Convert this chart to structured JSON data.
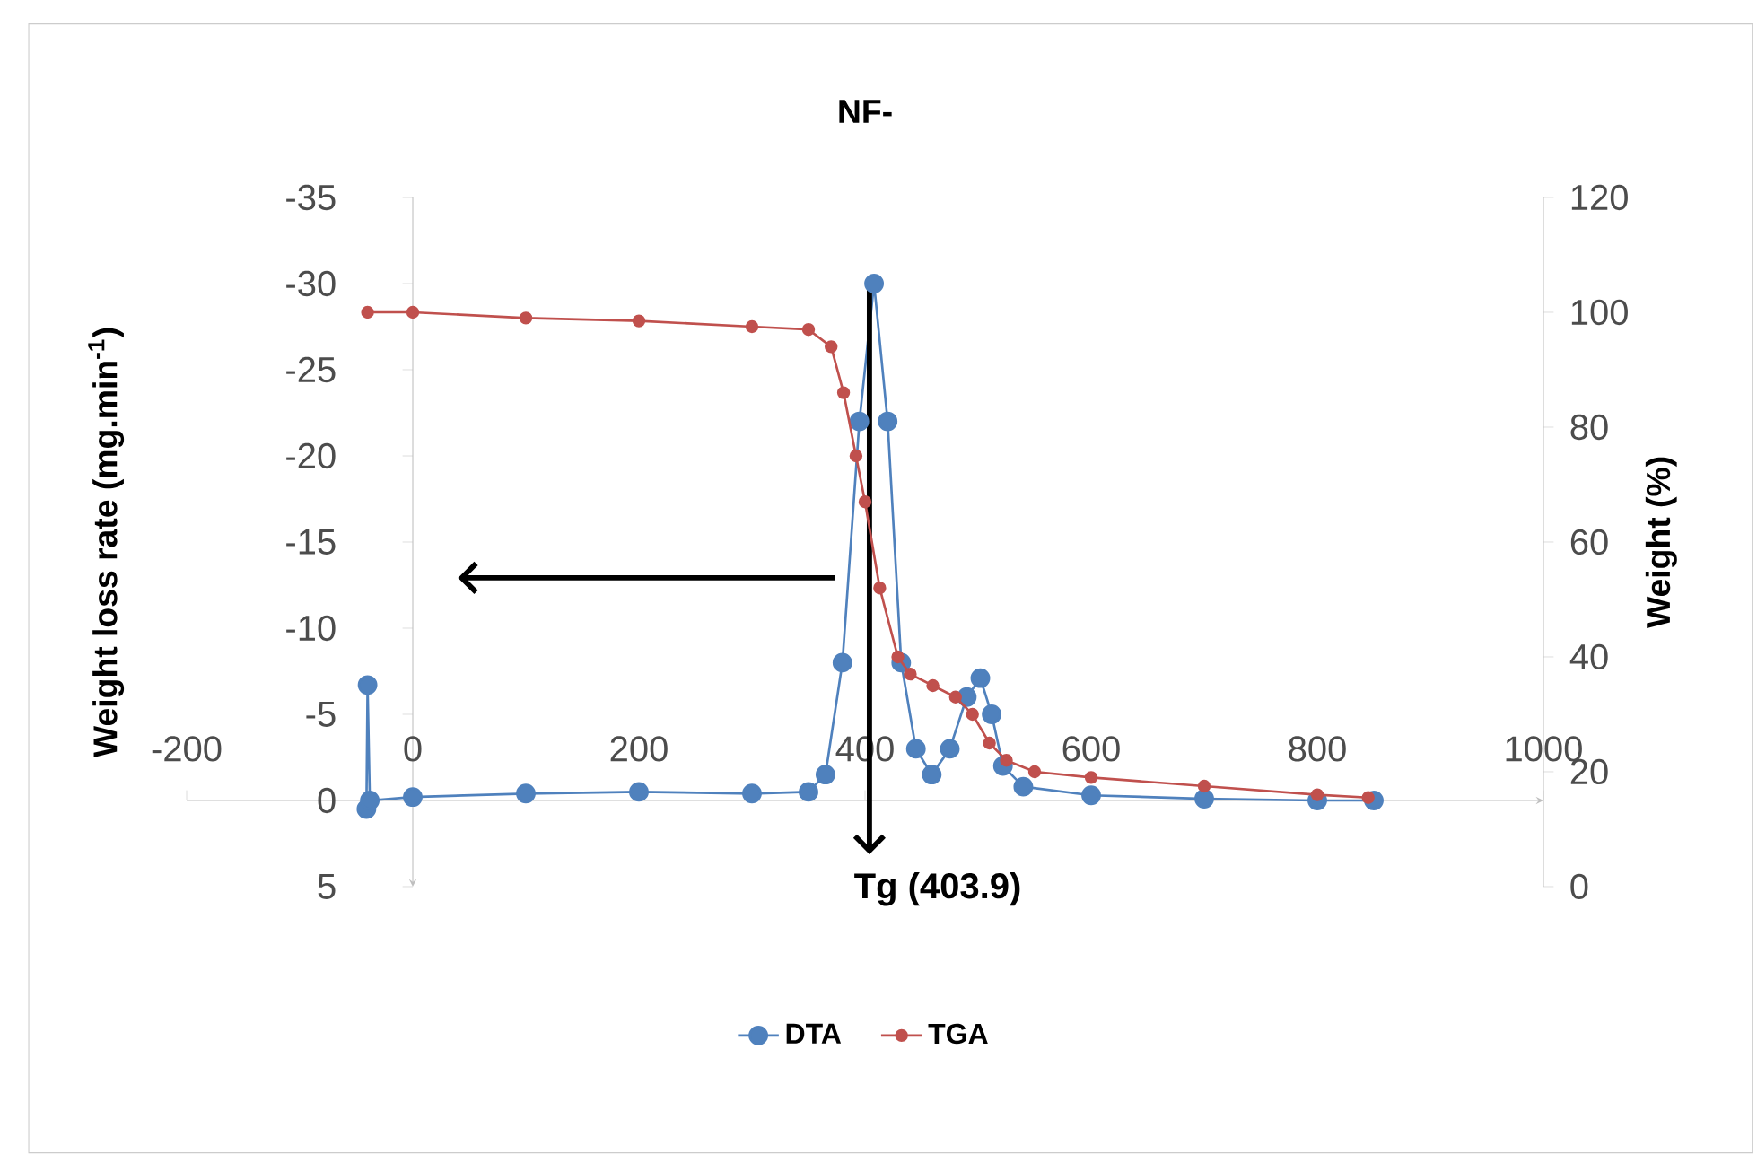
{
  "chart_data": {
    "type": "line",
    "title": "NF-",
    "ylabel": "Weight loss rate (mg.min$^{-1}$)",
    "y2label": "Weight (%)",
    "xlim": [
      -200,
      1000
    ],
    "xticks": [
      -200,
      0,
      200,
      400,
      600,
      800,
      1000
    ],
    "ylim": [
      5,
      -35
    ],
    "yticks": [
      -35,
      -30,
      -25,
      -20,
      -15,
      -10,
      -5,
      0,
      5
    ],
    "y2lim": [
      0,
      120
    ],
    "y2ticks": [
      0,
      20,
      40,
      60,
      80,
      100,
      120
    ],
    "legend": "bottom",
    "marker": "circle",
    "ref_lines": [
      {
        "axis": "x",
        "value": 403.9,
        "label": "Tg (403.9)",
        "color": "#000000"
      }
    ],
    "series": [
      {
        "name": "DTA",
        "color": "#4f81bd",
        "x": [
          -41,
          -40,
          -38,
          0,
          100,
          200,
          300,
          350,
          365,
          380,
          395,
          408,
          420,
          432,
          445,
          459,
          475,
          490,
          502,
          512,
          522,
          540,
          600,
          700,
          800,
          850
        ],
        "values": [
          0.5,
          -6.7,
          0,
          -0.2,
          -0.4,
          -0.5,
          -0.4,
          -0.5,
          -1.5,
          -8,
          -22,
          -30,
          -22,
          -8,
          -3,
          -1.5,
          -3,
          -6,
          -7.1,
          -5,
          -2,
          -0.8,
          -0.3,
          -0.1,
          0,
          0
        ]
      },
      {
        "name": "TGA",
        "color": "#c0504d",
        "axis": "y2",
        "x": [
          -40,
          0,
          100,
          200,
          300,
          350,
          370,
          381,
          392,
          400,
          413,
          429,
          440,
          460,
          480,
          495,
          510,
          525,
          550,
          600,
          700,
          800,
          845
        ],
        "values": [
          100,
          100,
          99,
          98.5,
          97.5,
          97,
          94,
          86,
          75,
          67,
          52,
          40,
          37,
          35,
          33,
          30,
          25,
          22,
          20,
          19,
          17.5,
          16,
          15.5
        ]
      }
    ]
  }
}
